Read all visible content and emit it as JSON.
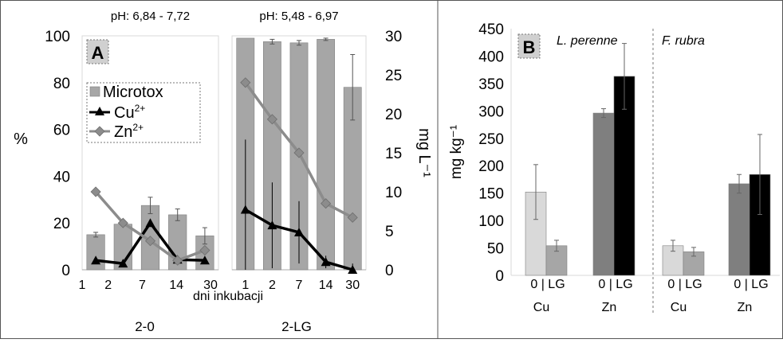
{
  "colors": {
    "microtox": "#a6a6a6",
    "cu": "#000000",
    "zn": "#8c8c8c",
    "b_light": "#d9d9d9",
    "b_mid": "#a6a6a6",
    "b_dark": "#7f7f7f",
    "b_black": "#000000"
  },
  "chart_data": [
    {
      "type": "bar",
      "panel_label": "A",
      "ylabel": "%",
      "y2label": "mg L⁻¹",
      "ylim": [
        0,
        100
      ],
      "y2lim": [
        0,
        30
      ],
      "yticks": [
        "0",
        "20",
        "40",
        "60",
        "80",
        "100"
      ],
      "y2ticks": [
        "0",
        "5",
        "10",
        "15",
        "20",
        "25",
        "30"
      ],
      "xlabel": "dni inkubacji",
      "legend_location": "upper-left",
      "legend": [
        {
          "series": "microtox",
          "text": "Microtox"
        },
        {
          "series": "cu",
          "text": "Cu",
          "sup": "2+"
        },
        {
          "series": "zn",
          "text": "Zn",
          "sup": "2+"
        }
      ],
      "groups": [
        {
          "name": "2-0",
          "ph": "pH: 6,84 - 7,72",
          "categories": [
            "1",
            "2",
            "7",
            "14",
            "30"
          ],
          "first_tick": "1",
          "x_ticks": [
            "2",
            "7",
            "14",
            "30"
          ],
          "series": [
            {
              "id": "microtox",
              "axis": "left",
              "mark": "bar",
              "values": [
                15,
                19.5,
                27.5,
                23.5,
                14.5
              ],
              "errors": [
                1,
                0,
                3.5,
                2.5,
                3.5
              ]
            },
            {
              "id": "cu",
              "axis": "right",
              "mark": "line",
              "values": [
                1.2,
                0.8,
                6,
                1.3,
                1.2
              ],
              "errors": [
                0,
                0,
                0,
                0,
                0
              ]
            },
            {
              "id": "zn",
              "axis": "right",
              "mark": "line",
              "values": [
                10,
                6,
                3.7,
                1.2,
                2.5
              ],
              "errors": [
                0,
                0,
                0,
                0,
                0
              ]
            }
          ]
        },
        {
          "name": "2-LG",
          "ph": "pH: 5,48 - 6,97",
          "categories": [
            "1",
            "2",
            "7",
            "14",
            "30"
          ],
          "x_ticks": [
            "1",
            "2",
            "7",
            "14",
            "30"
          ],
          "series": [
            {
              "id": "microtox",
              "axis": "left",
              "mark": "bar",
              "values": [
                99,
                97.5,
                97,
                98.5,
                78
              ],
              "errors": [
                0,
                1,
                1,
                0.5,
                14
              ]
            },
            {
              "id": "cu",
              "axis": "right",
              "mark": "line",
              "values": [
                7.7,
                5.7,
                4.8,
                1,
                0
              ],
              "errors": [
                9,
                5.5,
                4,
                0.8,
                0.8
              ]
            },
            {
              "id": "zn",
              "axis": "right",
              "mark": "line",
              "values": [
                24,
                19.3,
                15,
                8.5,
                6.7
              ],
              "errors": [
                0,
                0,
                0,
                0,
                0
              ]
            }
          ]
        }
      ]
    },
    {
      "type": "bar",
      "panel_label": "B",
      "ylabel": "mg kg⁻¹",
      "ylim": [
        0,
        450
      ],
      "yticks": [
        "0",
        "50",
        "100",
        "150",
        "200",
        "250",
        "300",
        "350",
        "400",
        "450"
      ],
      "species": [
        {
          "name": "L. perenne",
          "groups": [
            {
              "metal": "Cu",
              "label": "0 | LG",
              "bars": [
                {
                  "treatment": "0",
                  "value": 152,
                  "error": 50,
                  "color": "b_light"
                },
                {
                  "treatment": "LG",
                  "value": 54,
                  "error": 10,
                  "color": "b_mid"
                }
              ]
            },
            {
              "metal": "Zn",
              "label": "0 | LG",
              "bars": [
                {
                  "treatment": "0",
                  "value": 296,
                  "error": 8,
                  "color": "b_dark"
                },
                {
                  "treatment": "LG",
                  "value": 363,
                  "error": 60,
                  "color": "b_black"
                }
              ]
            }
          ]
        },
        {
          "name": "F. rubra",
          "groups": [
            {
              "metal": "Cu",
              "label": "0 | LG",
              "bars": [
                {
                  "treatment": "0",
                  "value": 54,
                  "error": 10,
                  "color": "b_light"
                },
                {
                  "treatment": "LG",
                  "value": 43,
                  "error": 8,
                  "color": "b_mid"
                }
              ]
            },
            {
              "metal": "Zn",
              "label": "0 | LG",
              "bars": [
                {
                  "treatment": "0",
                  "value": 167,
                  "error": 17,
                  "color": "b_dark"
                },
                {
                  "treatment": "LG",
                  "value": 184,
                  "error": 73,
                  "color": "b_black"
                }
              ]
            }
          ]
        }
      ]
    }
  ]
}
